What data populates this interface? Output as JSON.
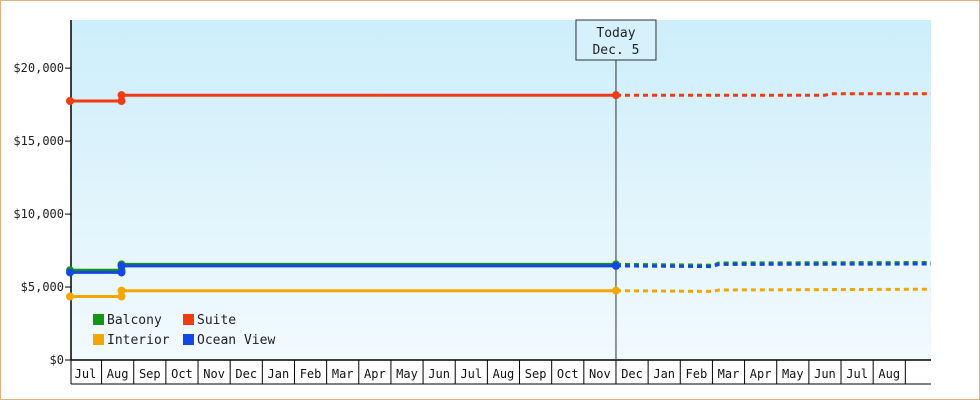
{
  "chart_data": {
    "type": "line",
    "y_ticks": [
      "$0",
      "$5,000",
      "$10,000",
      "$15,000",
      "$20,000"
    ],
    "y_tick_values": [
      0,
      5000,
      10000,
      15000,
      20000
    ],
    "ylim": [
      0,
      23300
    ],
    "x_months": [
      "Jul",
      "Aug",
      "Sep",
      "Oct",
      "Nov",
      "Dec",
      "Jan",
      "Feb",
      "Mar",
      "Apr",
      "May",
      "Jun",
      "Jul",
      "Aug",
      "Sep",
      "Oct",
      "Nov",
      "Dec",
      "Jan",
      "Feb",
      "Mar",
      "Apr",
      "May",
      "Jun",
      "Jul",
      "Aug"
    ],
    "today_index": 17,
    "today_label_line1": "Today",
    "today_label_line2": "Dec. 5",
    "grid": false,
    "legend_position": "bottom-left",
    "series": [
      {
        "name": "Balcony",
        "color": "#149614",
        "history": [
          [
            0,
            6150
          ],
          [
            1.62,
            6150
          ],
          [
            1.62,
            6550
          ],
          [
            17,
            6550
          ]
        ],
        "forecast": [
          [
            17,
            6550
          ],
          [
            20,
            6500
          ],
          [
            20.2,
            6650
          ],
          [
            26,
            6680
          ]
        ],
        "markers": [
          [
            0,
            6150
          ],
          [
            1.62,
            6150
          ],
          [
            1.62,
            6550
          ],
          [
            17,
            6550
          ]
        ]
      },
      {
        "name": "Suite",
        "color": "#f03c14",
        "history": [
          [
            0,
            17750
          ],
          [
            1.62,
            17750
          ],
          [
            1.62,
            18150
          ],
          [
            17,
            18150
          ]
        ],
        "forecast": [
          [
            17,
            18150
          ],
          [
            23.5,
            18150
          ],
          [
            23.7,
            18250
          ],
          [
            26,
            18250
          ]
        ],
        "markers": [
          [
            0,
            17750
          ],
          [
            1.62,
            17750
          ],
          [
            1.62,
            18150
          ],
          [
            17,
            18150
          ]
        ]
      },
      {
        "name": "Interior",
        "color": "#f5a500",
        "history": [
          [
            0,
            4350
          ],
          [
            1.62,
            4350
          ],
          [
            1.62,
            4750
          ],
          [
            17,
            4750
          ]
        ],
        "forecast": [
          [
            17,
            4750
          ],
          [
            20,
            4700
          ],
          [
            20.2,
            4800
          ],
          [
            26,
            4850
          ]
        ],
        "markers": [
          [
            0,
            4350
          ],
          [
            1.62,
            4350
          ],
          [
            1.62,
            4750
          ],
          [
            17,
            4750
          ]
        ]
      },
      {
        "name": "Ocean View",
        "color": "#1446e6",
        "history": [
          [
            0,
            6000
          ],
          [
            1.62,
            6000
          ],
          [
            1.62,
            6450
          ],
          [
            17,
            6450
          ]
        ],
        "forecast": [
          [
            17,
            6450
          ],
          [
            20,
            6400
          ],
          [
            20.2,
            6550
          ],
          [
            26,
            6580
          ]
        ],
        "markers": [
          [
            0,
            6000
          ],
          [
            1.62,
            6000
          ],
          [
            1.62,
            6450
          ],
          [
            17,
            6450
          ]
        ]
      }
    ]
  }
}
